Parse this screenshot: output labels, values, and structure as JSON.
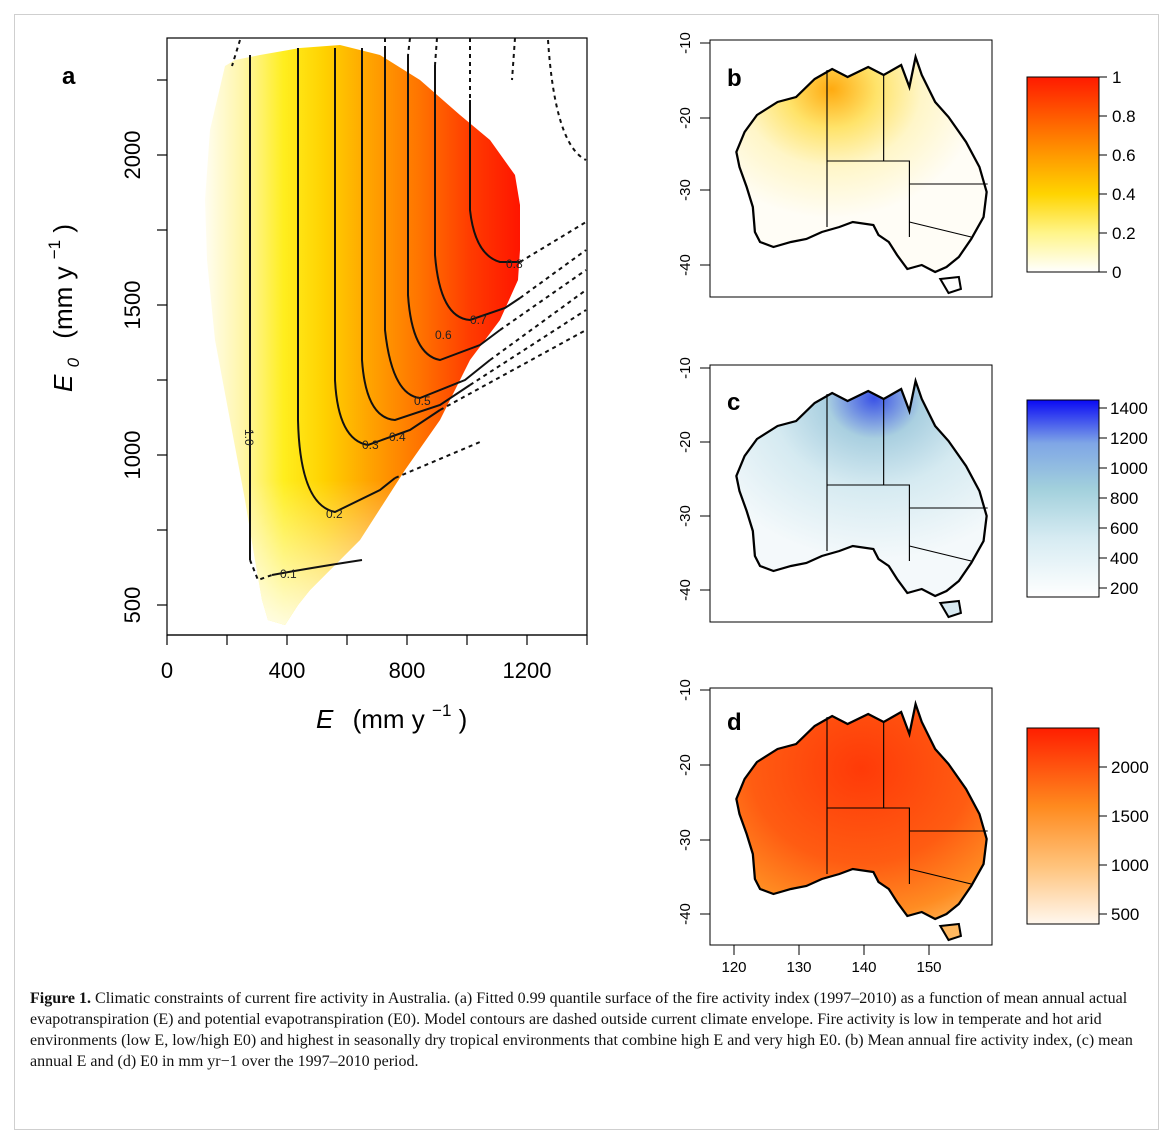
{
  "figure": {
    "panel_a": {
      "label": "a",
      "x_axis_label": "E",
      "x_axis_unit": "(mm y",
      "x_axis_unit_sup": "−1",
      "y_axis_label": "E",
      "y_axis_label_sub": "0",
      "y_axis_unit": "(mm y",
      "y_axis_unit_sup": "−1",
      "x_ticks": [
        "0",
        "400",
        "800",
        "1200"
      ],
      "y_ticks": [
        "500",
        "1000",
        "1500",
        "2000"
      ],
      "contour_labels": [
        "0.1",
        "0.2",
        "0.3",
        "0.4",
        "0.5",
        "0.6",
        "0.7",
        "0.8",
        "1.0"
      ]
    },
    "panel_b": {
      "label": "b",
      "lat_ticks": [
        "-10",
        "-20",
        "-30",
        "-40"
      ],
      "colorbar_ticks": [
        "1",
        "0.8",
        "0.6",
        "0.4",
        "0.2",
        "0"
      ],
      "colors": [
        "#fffbea",
        "#ffe21a",
        "#ff9a00",
        "#ff2200"
      ]
    },
    "panel_c": {
      "label": "c",
      "lat_ticks": [
        "-10",
        "-20",
        "-30",
        "-40"
      ],
      "colorbar_ticks": [
        "1400",
        "1200",
        "1000",
        "800",
        "600",
        "400",
        "200"
      ],
      "colors": [
        "#f6fafc",
        "#a9d3e0",
        "#7399e4",
        "#1010f0"
      ]
    },
    "panel_d": {
      "label": "d",
      "lat_ticks": [
        "-10",
        "-20",
        "-30",
        "-40"
      ],
      "lon_ticks": [
        "120",
        "130",
        "140",
        "150"
      ],
      "colorbar_ticks": [
        "2000",
        "1500",
        "1000",
        "500"
      ],
      "colors": [
        "#fff4e6",
        "#ffb13a",
        "#ff6a10",
        "#ff2a00"
      ]
    }
  },
  "chart_data": [
    {
      "type": "heatmap",
      "panel": "a",
      "xlabel": "E (mm y−1)",
      "ylabel": "E0 (mm y−1)",
      "xlim": [
        0,
        1400
      ],
      "ylim": [
        400,
        2400
      ],
      "x_ticks": [
        0,
        400,
        800,
        1200
      ],
      "y_ticks": [
        500,
        1000,
        1500,
        2000
      ],
      "contour_levels": [
        0.1,
        0.2,
        0.3,
        0.4,
        0.5,
        0.6,
        0.7,
        0.8,
        1.0
      ],
      "color_range": [
        0,
        1
      ]
    },
    {
      "type": "heatmap",
      "panel": "b",
      "lat_ticks": [
        -10,
        -20,
        -30,
        -40
      ],
      "colorbar_range": [
        0,
        1
      ],
      "colorbar_ticks": [
        0,
        0.2,
        0.4,
        0.6,
        0.8,
        1
      ]
    },
    {
      "type": "heatmap",
      "panel": "c",
      "lat_ticks": [
        -10,
        -20,
        -30,
        -40
      ],
      "colorbar_range": [
        100,
        1450
      ],
      "colorbar_ticks": [
        200,
        400,
        600,
        800,
        1000,
        1200,
        1400
      ]
    },
    {
      "type": "heatmap",
      "panel": "d",
      "lat_ticks": [
        -10,
        -20,
        -30,
        -40
      ],
      "lon_ticks": [
        120,
        130,
        140,
        150
      ],
      "colorbar_range": [
        400,
        2400
      ],
      "colorbar_ticks": [
        500,
        1000,
        1500,
        2000
      ]
    }
  ],
  "caption": {
    "label": "Figure 1.",
    "text": "Climatic constraints of current fire activity in Australia. (a) Fitted 0.99 quantile surface of the fire activity index (1997–2010) as a function of mean annual actual evapotranspiration (E) and potential evapotranspiration (E0). Model contours are dashed outside current climate envelope. Fire activity is low in temperate and hot arid environments (low E, low/high E0) and highest in seasonally dry tropical environments that combine high E and very high E0. (b) Mean annual fire activity index, (c) mean annual E and (d) E0 in mm yr−1 over the 1997–2010 period."
  }
}
